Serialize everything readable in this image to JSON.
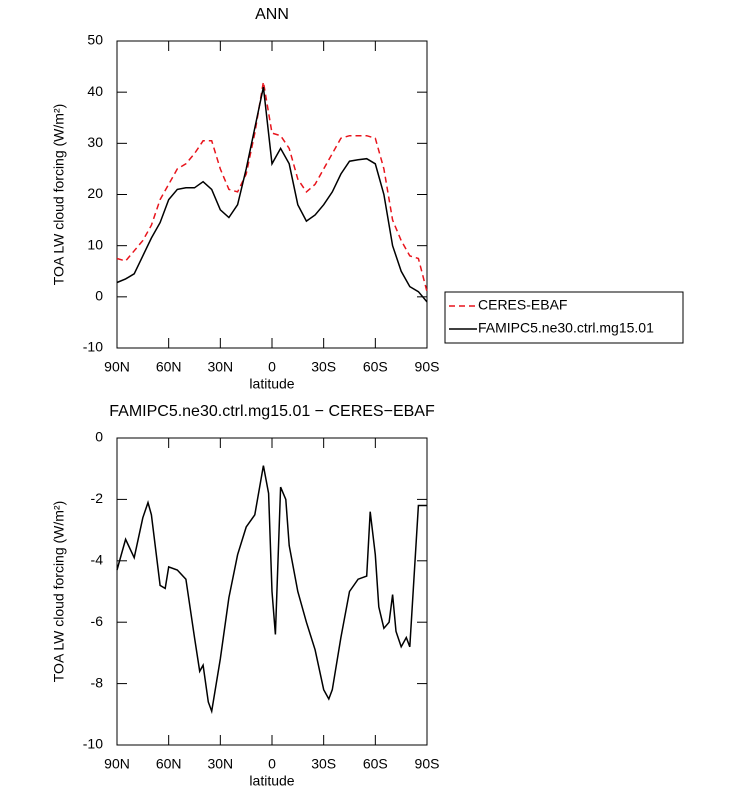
{
  "chart_data": [
    {
      "type": "line",
      "title": "ANN",
      "xlabel": "latitude",
      "ylabel": "TOA LW cloud forcing (W/m²)",
      "x": [
        90,
        85,
        80,
        75,
        70,
        65,
        60,
        55,
        50,
        45,
        40,
        35,
        30,
        25,
        20,
        15,
        10,
        5,
        0,
        -5,
        -10,
        -15,
        -20,
        -25,
        -30,
        -35,
        -40,
        -45,
        -50,
        -55,
        -60,
        -65,
        -70,
        -75,
        -80,
        -85,
        -90
      ],
      "series": [
        {
          "name": "CERES-EBAF",
          "color": "#e8141c",
          "dashed": true,
          "values": [
            7.5,
            7,
            9,
            11,
            14,
            19,
            22,
            25,
            26,
            28,
            30.5,
            30.5,
            25,
            21,
            20.5,
            24,
            32,
            42,
            32,
            31.5,
            29,
            23,
            20.5,
            22,
            25,
            28,
            31,
            31.5,
            31.5,
            31.5,
            31,
            25,
            15,
            11,
            8,
            7.5,
            1
          ]
        },
        {
          "name": "FAMIPC5.ne30.ctrl.mg15.01",
          "color": "#000000",
          "dashed": false,
          "values": [
            2.8,
            3.5,
            4.5,
            8,
            11.5,
            14.5,
            19,
            21,
            21.3,
            21.3,
            22.5,
            21,
            17,
            15.5,
            18,
            25,
            33,
            41,
            26,
            29,
            26,
            18,
            14.8,
            16,
            18,
            20.5,
            24,
            26.5,
            26.8,
            27,
            26,
            20,
            10,
            5,
            2,
            1,
            -1
          ]
        }
      ],
      "xlim": [
        90,
        -90
      ],
      "xticks": [
        {
          "value": 90,
          "label": "90N"
        },
        {
          "value": 60,
          "label": "60N"
        },
        {
          "value": 30,
          "label": "30N"
        },
        0,
        {
          "value": -30,
          "label": "30S"
        },
        {
          "value": -60,
          "label": "60S"
        },
        {
          "value": -90,
          "label": "90S"
        }
      ],
      "ylim": [
        -10,
        50
      ],
      "yticks": [
        -10,
        0,
        10,
        20,
        30,
        40,
        50
      ],
      "legend": "outside right"
    },
    {
      "type": "line",
      "title": "FAMIPC5.ne30.ctrl.mg15.01 − CERES−EBAF",
      "xlabel": "latitude",
      "ylabel": "TOA LW cloud forcing (W/m²)",
      "x": [
        90,
        85,
        80,
        75,
        72,
        70,
        65,
        62,
        60,
        55,
        50,
        45,
        42,
        40,
        37,
        35,
        30,
        25,
        20,
        15,
        10,
        5,
        2,
        0,
        -2,
        -5,
        -8,
        -10,
        -15,
        -20,
        -25,
        -30,
        -33,
        -35,
        -40,
        -45,
        -50,
        -55,
        -57,
        -60,
        -62,
        -65,
        -68,
        -70,
        -72,
        -75,
        -78,
        -80,
        -85,
        -90
      ],
      "series": [
        {
          "color": "#000000",
          "dashed": false,
          "values": [
            -4.3,
            -3.3,
            -3.9,
            -2.6,
            -2.1,
            -2.5,
            -4.8,
            -4.9,
            -4.2,
            -4.3,
            -4.6,
            -6.5,
            -7.6,
            -7.4,
            -8.6,
            -8.9,
            -7.2,
            -5.2,
            -3.8,
            -2.9,
            -2.5,
            -0.9,
            -1.8,
            -5,
            -6.4,
            -1.6,
            -2,
            -3.5,
            -5,
            -6,
            -6.9,
            -8.2,
            -8.5,
            -8.2,
            -6.5,
            -5,
            -4.6,
            -4.5,
            -2.4,
            -3.8,
            -5.5,
            -6.2,
            -6,
            -5.1,
            -6.3,
            -6.8,
            -6.5,
            -6.8,
            -2.2,
            -2.2
          ]
        }
      ],
      "xlim": [
        90,
        -90
      ],
      "xticks": [
        {
          "value": 90,
          "label": "90N"
        },
        {
          "value": 60,
          "label": "60N"
        },
        {
          "value": 30,
          "label": "30N"
        },
        0,
        {
          "value": -30,
          "label": "30S"
        },
        {
          "value": -60,
          "label": "60S"
        },
        {
          "value": -90,
          "label": "90S"
        }
      ],
      "ylim": [
        -10,
        0
      ],
      "yticks": [
        -10,
        -8,
        -6,
        -4,
        -2,
        0
      ]
    }
  ]
}
